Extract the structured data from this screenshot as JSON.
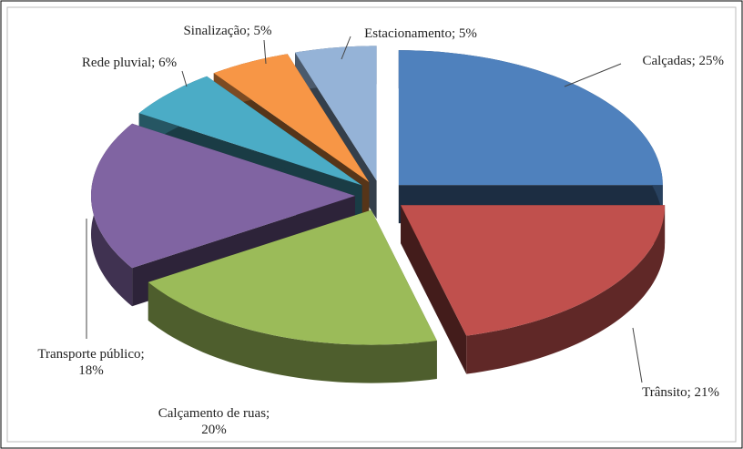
{
  "chart_data": {
    "type": "pie",
    "values": [
      25,
      21,
      20,
      18,
      6,
      5,
      5
    ],
    "value_labels": [
      "Calçadas; 25%",
      "Trânsito; 21%",
      "Calçamento de ruas;\n20%",
      "Transporte público;\n18%",
      "Rede pluvial; 6%",
      "Sinalização; 5%",
      "Estacionamento; 5%"
    ],
    "colors": [
      "#4f81bd",
      "#c0504d",
      "#9bbb59",
      "#8064a2",
      "#4bacc6",
      "#f79646",
      "#95b3d7"
    ]
  }
}
